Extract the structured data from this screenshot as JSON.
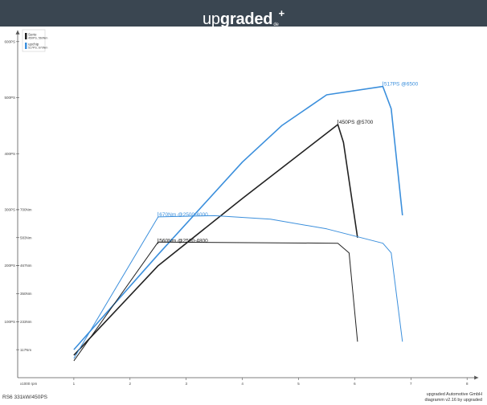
{
  "header": {
    "brand_thin": "up",
    "brand_bold": "graded",
    "brand_plus": "+",
    "brand_tld": "de",
    "bg_color": "#3a4651"
  },
  "footer": {
    "model": "RS6  331kW/450PS",
    "company": "upgraded Automotive GmbH",
    "version": "diagramm v2.16 by upgraded"
  },
  "chart_data": {
    "type": "line",
    "x_unit": "x1000 rpm",
    "xlim": [
      0,
      8
    ],
    "x_ticks": [
      "1",
      "2",
      "3",
      "4",
      "5",
      "6",
      "7",
      "8"
    ],
    "power_axis": {
      "unit": "PS",
      "ylim": [
        0,
        600
      ],
      "ticks": [
        "100PS",
        "200PS",
        "300PS",
        "400PS",
        "500PS",
        "600PS"
      ]
    },
    "torque_axis": {
      "unit": "Nm",
      "ticks": [
        "117Nm",
        "233Nm",
        "350Nm",
        "467Nm",
        "583Nm",
        "700Nm"
      ]
    },
    "legend": [
      {
        "name": "Serie",
        "detail": "450PS, 560Nm",
        "color": "#222222"
      },
      {
        "name": "upchip",
        "detail": "517PS, 670Nm",
        "color": "#3b8fdc"
      }
    ],
    "series": [
      {
        "name": "Serie",
        "quantity": "power",
        "color": "#222222",
        "points": [
          [
            1.0,
            40
          ],
          [
            2.5,
            200
          ],
          [
            4.0,
            320
          ],
          [
            5.7,
            452
          ],
          [
            5.8,
            420
          ],
          [
            6.05,
            250
          ]
        ]
      },
      {
        "name": "upchip",
        "quantity": "power",
        "color": "#3b8fdc",
        "points": [
          [
            1.0,
            50
          ],
          [
            2.5,
            220
          ],
          [
            4.0,
            385
          ],
          [
            4.7,
            450
          ],
          [
            5.5,
            505
          ],
          [
            6.5,
            520
          ],
          [
            6.65,
            480
          ],
          [
            6.85,
            290
          ]
        ]
      },
      {
        "name": "Serie",
        "quantity": "torque",
        "color": "#222222",
        "points": [
          [
            1.0,
            70
          ],
          [
            2.5,
            565
          ],
          [
            5.7,
            560
          ],
          [
            5.9,
            520
          ],
          [
            6.05,
            150
          ]
        ]
      },
      {
        "name": "upchip",
        "quantity": "torque",
        "color": "#3b8fdc",
        "points": [
          [
            1.0,
            80
          ],
          [
            2.5,
            670
          ],
          [
            3.5,
            675
          ],
          [
            4.5,
            660
          ],
          [
            5.5,
            620
          ],
          [
            6.5,
            560
          ],
          [
            6.65,
            520
          ],
          [
            6.85,
            150
          ]
        ]
      }
    ],
    "annotations": [
      {
        "text": "517PS @6500",
        "color": "#3b8fdc",
        "x": 6.5,
        "y_power": 520
      },
      {
        "text": "450PS @5700",
        "color": "#222222",
        "x": 5.7,
        "y_power": 452
      },
      {
        "text": "670Nm @2500-4000",
        "color": "#3b8fdc",
        "x": 2.5,
        "y_torque": 670
      },
      {
        "text": "560Nm @2500-4800",
        "color": "#222222",
        "x": 2.5,
        "y_torque": 560
      }
    ]
  }
}
